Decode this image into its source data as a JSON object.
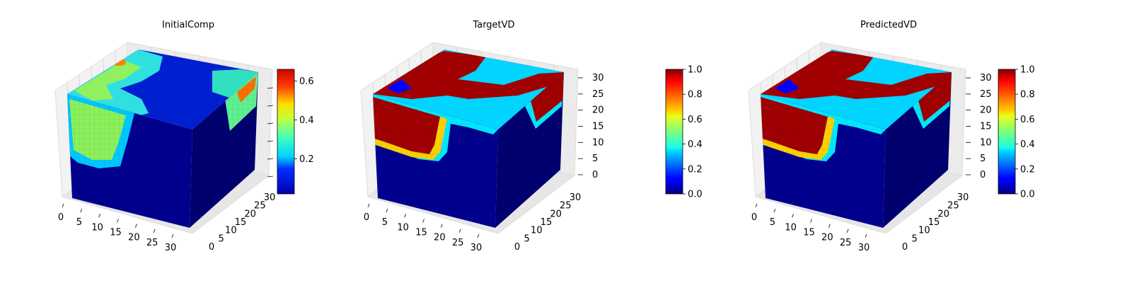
{
  "chart_data": [
    {
      "type": "3d-voxel",
      "title": "InitialComp",
      "colormap": "jet",
      "x_ticks": [
        "0",
        "5",
        "10",
        "15",
        "20",
        "25",
        "30"
      ],
      "y_ticks": [
        "0",
        "5",
        "10",
        "15",
        "20",
        "25",
        "30"
      ],
      "z_ticks": [],
      "colorbar": {
        "range": [
          0.02,
          0.66
        ],
        "ticks": [
          "0.2",
          "0.4",
          "0.6"
        ]
      },
      "front_regions": [
        {
          "value": 0.47,
          "desc": "left face green blob"
        },
        {
          "value": 0.0,
          "desc": "background"
        }
      ]
    },
    {
      "type": "3d-voxel",
      "title": "TargetVD",
      "colormap": "jet",
      "x_ticks": [
        "0",
        "5",
        "10",
        "15",
        "20",
        "25",
        "30"
      ],
      "y_ticks": [
        "0",
        "5",
        "10",
        "15",
        "20",
        "25",
        "30"
      ],
      "z_ticks": [
        "0",
        "5",
        "10",
        "15",
        "20",
        "25",
        "30"
      ],
      "colorbar": {
        "range": [
          0.0,
          1.0
        ],
        "ticks": [
          "0.0",
          "0.2",
          "0.4",
          "0.6",
          "0.8",
          "1.0"
        ]
      }
    },
    {
      "type": "3d-voxel",
      "title": "PredictedVD",
      "colormap": "jet",
      "x_ticks": [
        "0",
        "5",
        "10",
        "15",
        "20",
        "25",
        "30"
      ],
      "y_ticks": [
        "0",
        "5",
        "10",
        "15",
        "20",
        "25",
        "30"
      ],
      "z_ticks": [
        "0",
        "5",
        "10",
        "15",
        "20",
        "25",
        "30"
      ],
      "colorbar": {
        "range": [
          0.0,
          1.0
        ],
        "ticks": [
          "0.0",
          "0.2",
          "0.4",
          "0.6",
          "0.8",
          "1.0"
        ]
      }
    }
  ],
  "colors": {
    "dark_blue": "#00007f",
    "red_dark": "#800000",
    "pane": "#f2f2f2"
  }
}
